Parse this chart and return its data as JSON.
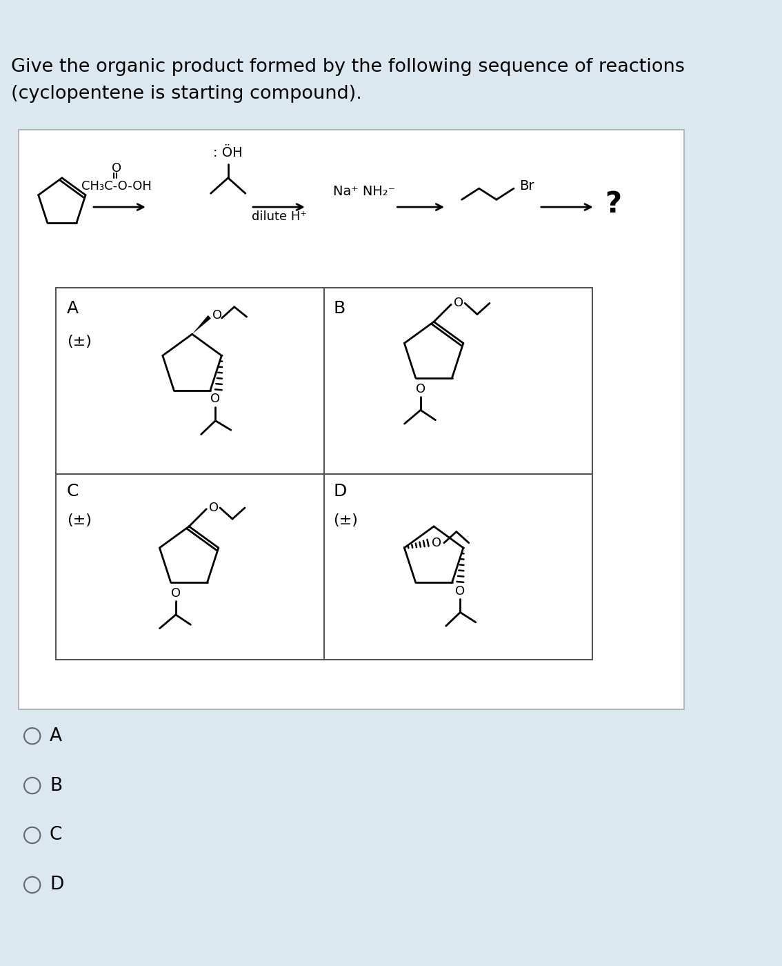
{
  "title_line1": "Give the organic product formed by the following sequence of reactions",
  "title_line2": "(cyclopentene is starting compound).",
  "bg_color": "#dce8f0",
  "box_color": "#ffffff",
  "text_color": "#000000",
  "choice_labels": [
    "A",
    "B",
    "C",
    "D"
  ],
  "reagent1": "CH₃C-O-OH",
  "reagent2": "dilute H⁺",
  "reagent3": "Na⁺ NH₂⁻",
  "question_mark": "?",
  "pm": "(±)"
}
